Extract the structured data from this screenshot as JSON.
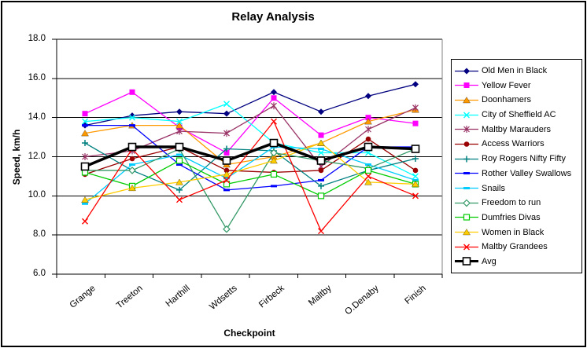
{
  "chart_data": {
    "type": "line",
    "title": "Relay Analysis",
    "xlabel": "Checkpoint",
    "ylabel": "Speed, km/h",
    "ylim": [
      6.0,
      18.0
    ],
    "ytick_step": 2.0,
    "ytick_labels": [
      "18.0",
      "16.0",
      "14.0",
      "12.0",
      "10.0",
      "8.0",
      "6.0"
    ],
    "grid": true,
    "legend_position": "right",
    "categories": [
      "Grange",
      "Treeton",
      "Harthill",
      "Wdsetts",
      "Firbeck",
      "Maltby",
      "O.Denaby",
      "Finish"
    ],
    "series": [
      {
        "name": "Old Men in Black",
        "color": "#000080",
        "marker": "diamond",
        "values": [
          13.6,
          14.1,
          14.3,
          14.2,
          15.3,
          14.3,
          15.1,
          15.7
        ]
      },
      {
        "name": "Yellow Fever",
        "color": "#FF00FF",
        "marker": "square",
        "values": [
          14.2,
          15.3,
          13.5,
          12.2,
          15.0,
          13.1,
          14.0,
          13.7
        ]
      },
      {
        "name": "Doonhamers",
        "color": "#FF9900",
        "marker": "triangle",
        "values": [
          13.2,
          13.6,
          13.6,
          11.6,
          12.0,
          12.7,
          13.8,
          14.4
        ]
      },
      {
        "name": "City of Sheffield AC",
        "color": "#00FFFF",
        "marker": "x",
        "values": [
          13.8,
          14.0,
          13.8,
          14.7,
          12.7,
          12.2,
          12.2,
          11.0
        ]
      },
      {
        "name": "Maltby Marauders",
        "color": "#993366",
        "marker": "star",
        "values": [
          12.0,
          12.3,
          13.3,
          13.2,
          14.6,
          11.5,
          13.4,
          14.5
        ]
      },
      {
        "name": "Access Warriors",
        "color": "#990000",
        "marker": "circle",
        "values": [
          11.1,
          11.9,
          12.5,
          11.3,
          11.2,
          11.3,
          12.9,
          11.3
        ]
      },
      {
        "name": "Roy Rogers Nifty Fifty",
        "color": "#008080",
        "marker": "plus",
        "values": [
          12.7,
          11.3,
          10.3,
          12.4,
          12.3,
          10.5,
          11.3,
          11.9
        ]
      },
      {
        "name": "Rother Valley Swallows",
        "color": "#0000FF",
        "marker": "dash",
        "values": [
          13.6,
          13.6,
          11.6,
          10.3,
          10.5,
          10.8,
          12.5,
          12.5
        ]
      },
      {
        "name": "Snails",
        "color": "#00CCFF",
        "marker": "dash",
        "values": [
          9.6,
          11.6,
          12.1,
          10.9,
          12.5,
          12.4,
          11.6,
          10.8
        ]
      },
      {
        "name": "Freedom to run",
        "color": "#339966",
        "marker": "diamond-open",
        "values": [
          11.3,
          11.3,
          12.4,
          8.3,
          12.2,
          11.8,
          11.4,
          12.4
        ]
      },
      {
        "name": "Dumfries Divas",
        "color": "#00CC00",
        "marker": "square-open",
        "values": [
          11.2,
          10.5,
          11.8,
          10.6,
          11.1,
          10.0,
          11.3,
          10.6
        ]
      },
      {
        "name": "Women in Black",
        "color": "#FFCC00",
        "marker": "triangle",
        "values": [
          9.8,
          10.4,
          10.7,
          11.1,
          11.8,
          12.7,
          10.7,
          10.6
        ]
      },
      {
        "name": "Maltby Grandees",
        "color": "#FF0000",
        "marker": "x",
        "values": [
          8.7,
          12.4,
          9.8,
          10.8,
          13.8,
          8.2,
          11.0,
          10.0
        ]
      },
      {
        "name": "Avg",
        "color": "#000000",
        "marker": "square-open-bold",
        "thick": true,
        "values": [
          11.5,
          12.5,
          12.5,
          11.8,
          12.7,
          11.8,
          12.5,
          12.4
        ]
      }
    ]
  }
}
